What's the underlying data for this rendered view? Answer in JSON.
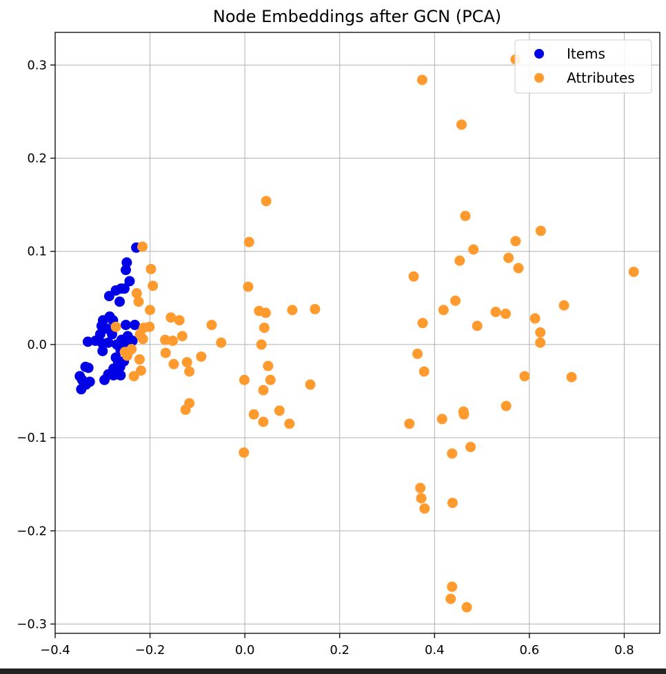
{
  "chart_data": {
    "type": "scatter",
    "title": "Node Embeddings after GCN (PCA)",
    "xlabel": "",
    "ylabel": "",
    "xlim": [
      -0.4,
      0.875
    ],
    "ylim": [
      -0.31,
      0.335
    ],
    "grid": true,
    "legend_position": "top-right",
    "x_ticks": [
      -0.4,
      -0.2,
      0.0,
      0.2,
      0.4,
      0.6,
      0.8
    ],
    "x_tick_labels": [
      "−0.4",
      "−0.2",
      "0.0",
      "0.2",
      "0.4",
      "0.6",
      "0.8"
    ],
    "y_ticks": [
      -0.3,
      -0.2,
      -0.1,
      0.0,
      0.1,
      0.2,
      0.3
    ],
    "y_tick_labels": [
      "−0.3",
      "−0.2",
      "−0.1",
      "0.0",
      "0.1",
      "0.2",
      "0.3"
    ],
    "series": [
      {
        "name": "Items",
        "color": "#0000e6",
        "points": [
          [
            -0.229,
            0.104
          ],
          [
            -0.249,
            0.088
          ],
          [
            -0.251,
            0.08
          ],
          [
            -0.243,
            0.068
          ],
          [
            -0.254,
            0.06
          ],
          [
            -0.261,
            0.06
          ],
          [
            -0.272,
            0.058
          ],
          [
            -0.286,
            0.052
          ],
          [
            -0.264,
            0.046
          ],
          [
            -0.285,
            0.03
          ],
          [
            -0.299,
            0.026
          ],
          [
            -0.278,
            0.026
          ],
          [
            -0.251,
            0.021
          ],
          [
            -0.232,
            0.021
          ],
          [
            -0.302,
            0.02
          ],
          [
            -0.291,
            0.017
          ],
          [
            -0.305,
            0.011
          ],
          [
            -0.28,
            0.011
          ],
          [
            -0.247,
            0.009
          ],
          [
            -0.315,
            0.004
          ],
          [
            -0.331,
            0.003
          ],
          [
            -0.26,
            0.005
          ],
          [
            -0.237,
            0.004
          ],
          [
            -0.3,
            0.001
          ],
          [
            -0.288,
            0.002
          ],
          [
            -0.27,
            0.0
          ],
          [
            -0.256,
            0.0
          ],
          [
            -0.3,
            -0.007
          ],
          [
            -0.262,
            -0.006
          ],
          [
            -0.245,
            -0.007
          ],
          [
            -0.272,
            -0.014
          ],
          [
            -0.255,
            -0.018
          ],
          [
            -0.267,
            -0.02
          ],
          [
            -0.263,
            -0.024
          ],
          [
            -0.336,
            -0.024
          ],
          [
            -0.33,
            -0.025
          ],
          [
            -0.277,
            -0.026
          ],
          [
            -0.27,
            -0.028
          ],
          [
            -0.288,
            -0.032
          ],
          [
            -0.262,
            -0.033
          ],
          [
            -0.348,
            -0.034
          ],
          [
            -0.277,
            -0.033
          ],
          [
            -0.296,
            -0.038
          ],
          [
            -0.343,
            -0.038
          ],
          [
            -0.327,
            -0.04
          ],
          [
            -0.335,
            -0.043
          ],
          [
            -0.345,
            -0.048
          ]
        ]
      },
      {
        "name": "Attributes",
        "color": "#ff9b2e",
        "points": [
          [
            0.571,
            0.306
          ],
          [
            0.374,
            0.284
          ],
          [
            0.457,
            0.236
          ],
          [
            0.045,
            0.154
          ],
          [
            0.465,
            0.138
          ],
          [
            0.624,
            0.122
          ],
          [
            -0.216,
            0.105
          ],
          [
            0.009,
            0.11
          ],
          [
            0.571,
            0.111
          ],
          [
            0.482,
            0.102
          ],
          [
            0.556,
            0.093
          ],
          [
            0.453,
            0.09
          ],
          [
            0.577,
            0.082
          ],
          [
            -0.198,
            0.081
          ],
          [
            0.82,
            0.078
          ],
          [
            0.356,
            0.073
          ],
          [
            -0.194,
            0.063
          ],
          [
            0.007,
            0.062
          ],
          [
            -0.228,
            0.055
          ],
          [
            -0.224,
            0.046
          ],
          [
            0.444,
            0.047
          ],
          [
            0.673,
            0.042
          ],
          [
            0.148,
            0.038
          ],
          [
            0.1,
            0.037
          ],
          [
            0.419,
            0.037
          ],
          [
            -0.2,
            0.037
          ],
          [
            0.03,
            0.036
          ],
          [
            0.044,
            0.034
          ],
          [
            0.529,
            0.035
          ],
          [
            0.55,
            0.033
          ],
          [
            -0.156,
            0.029
          ],
          [
            0.612,
            0.028
          ],
          [
            -0.138,
            0.026
          ],
          [
            0.375,
            0.023
          ],
          [
            -0.07,
            0.021
          ],
          [
            0.49,
            0.02
          ],
          [
            -0.201,
            0.019
          ],
          [
            -0.213,
            0.018
          ],
          [
            -0.272,
            0.019
          ],
          [
            0.041,
            0.018
          ],
          [
            -0.221,
            0.011
          ],
          [
            0.623,
            0.013
          ],
          [
            -0.132,
            0.009
          ],
          [
            -0.215,
            0.006
          ],
          [
            -0.168,
            0.005
          ],
          [
            -0.152,
            0.004
          ],
          [
            0.623,
            0.002
          ],
          [
            -0.05,
            0.002
          ],
          [
            0.035,
            0.0
          ],
          [
            -0.239,
            -0.005
          ],
          [
            -0.253,
            -0.008
          ],
          [
            -0.167,
            -0.009
          ],
          [
            0.364,
            -0.01
          ],
          [
            -0.248,
            -0.012
          ],
          [
            -0.092,
            -0.013
          ],
          [
            -0.222,
            -0.016
          ],
          [
            -0.122,
            -0.019
          ],
          [
            -0.15,
            -0.021
          ],
          [
            0.049,
            -0.023
          ],
          [
            -0.219,
            -0.028
          ],
          [
            0.378,
            -0.029
          ],
          [
            -0.117,
            -0.029
          ],
          [
            -0.234,
            -0.034
          ],
          [
            0.59,
            -0.034
          ],
          [
            0.689,
            -0.035
          ],
          [
            -0.001,
            -0.038
          ],
          [
            0.054,
            -0.038
          ],
          [
            0.138,
            -0.043
          ],
          [
            0.039,
            -0.049
          ],
          [
            -0.117,
            -0.063
          ],
          [
            0.551,
            -0.066
          ],
          [
            -0.125,
            -0.07
          ],
          [
            0.073,
            -0.071
          ],
          [
            0.461,
            -0.072
          ],
          [
            0.462,
            -0.075
          ],
          [
            0.019,
            -0.075
          ],
          [
            0.416,
            -0.08
          ],
          [
            0.039,
            -0.083
          ],
          [
            0.094,
            -0.085
          ],
          [
            0.347,
            -0.085
          ],
          [
            0.476,
            -0.11
          ],
          [
            -0.002,
            -0.116
          ],
          [
            0.437,
            -0.117
          ],
          [
            0.37,
            -0.154
          ],
          [
            0.372,
            -0.165
          ],
          [
            0.379,
            -0.176
          ],
          [
            0.438,
            -0.17
          ],
          [
            0.437,
            -0.26
          ],
          [
            0.434,
            -0.273
          ],
          [
            0.468,
            -0.282
          ]
        ]
      }
    ]
  }
}
